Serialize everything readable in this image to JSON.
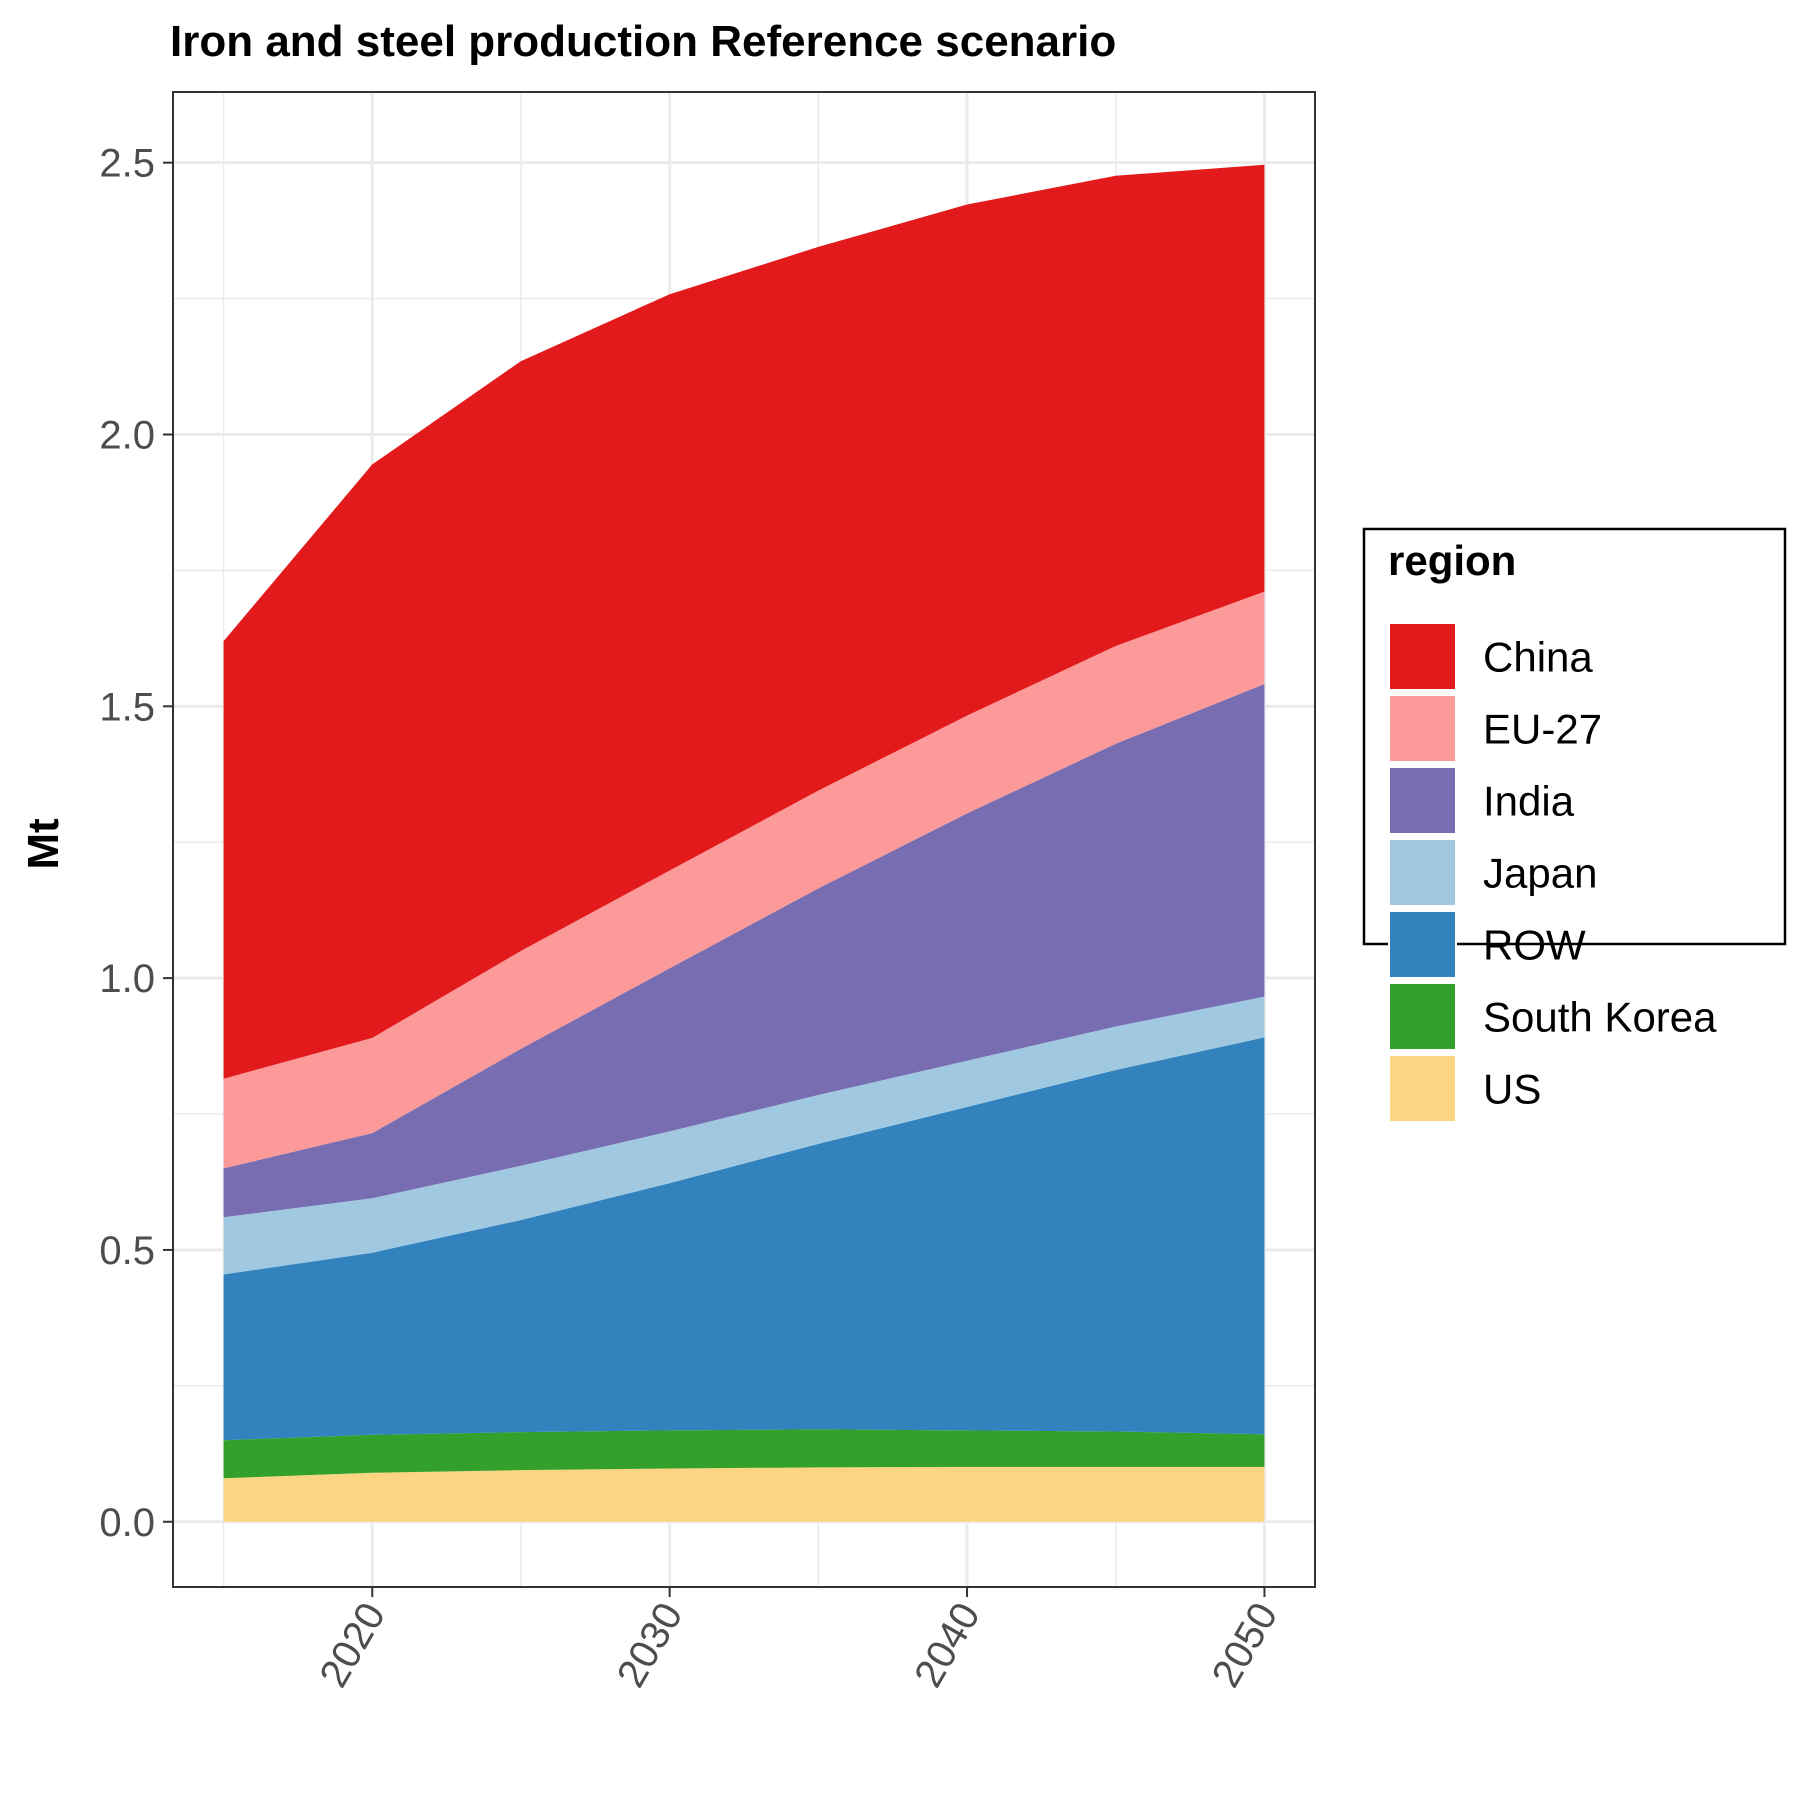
{
  "chart_data": {
    "type": "area",
    "stacked": true,
    "title": "Iron and steel production Reference scenario",
    "xlabel": "",
    "ylabel": "Mt",
    "x": [
      2015,
      2020,
      2025,
      2030,
      2035,
      2040,
      2045,
      2050
    ],
    "xlim": [
      2013.3,
      2051.7
    ],
    "ylim": [
      -0.12,
      2.63
    ],
    "x_ticks": [
      2020,
      2030,
      2040,
      2050
    ],
    "x_tick_labels": [
      "2020",
      "2030",
      "2040",
      "2050"
    ],
    "y_ticks": [
      0.0,
      0.5,
      1.0,
      1.5,
      2.0,
      2.5
    ],
    "y_tick_labels": [
      "0.0",
      "0.5",
      "1.0",
      "1.5",
      "2.0",
      "2.5"
    ],
    "x_tick_rotation": 60,
    "grid": true,
    "legend": {
      "title": "region",
      "position": "right"
    },
    "series": [
      {
        "name": "China",
        "color": "#e31a1c",
        "values": [
          0.805,
          1.055,
          1.085,
          1.06,
          1.0,
          0.94,
          0.865,
          0.785
        ]
      },
      {
        "name": "EU-27",
        "color": "#fb9a99",
        "values": [
          0.165,
          0.175,
          0.18,
          0.18,
          0.18,
          0.18,
          0.18,
          0.17
        ]
      },
      {
        "name": "India",
        "color": "#776db0",
        "values": [
          0.09,
          0.12,
          0.215,
          0.3,
          0.38,
          0.455,
          0.52,
          0.575
        ]
      },
      {
        "name": "Japan",
        "color": "#a0c9e1",
        "values": [
          0.105,
          0.1,
          0.1,
          0.095,
          0.09,
          0.085,
          0.08,
          0.075
        ]
      },
      {
        "name": "ROW",
        "color": "#3282bd",
        "values": [
          0.305,
          0.335,
          0.39,
          0.455,
          0.525,
          0.595,
          0.665,
          0.73
        ]
      },
      {
        "name": "South Korea",
        "color": "#33a02c",
        "values": [
          0.07,
          0.07,
          0.07,
          0.07,
          0.07,
          0.067,
          0.065,
          0.06
        ]
      },
      {
        "name": "US",
        "color": "#fbd582",
        "values": [
          0.08,
          0.09,
          0.095,
          0.098,
          0.1,
          0.101,
          0.101,
          0.101
        ]
      }
    ]
  }
}
